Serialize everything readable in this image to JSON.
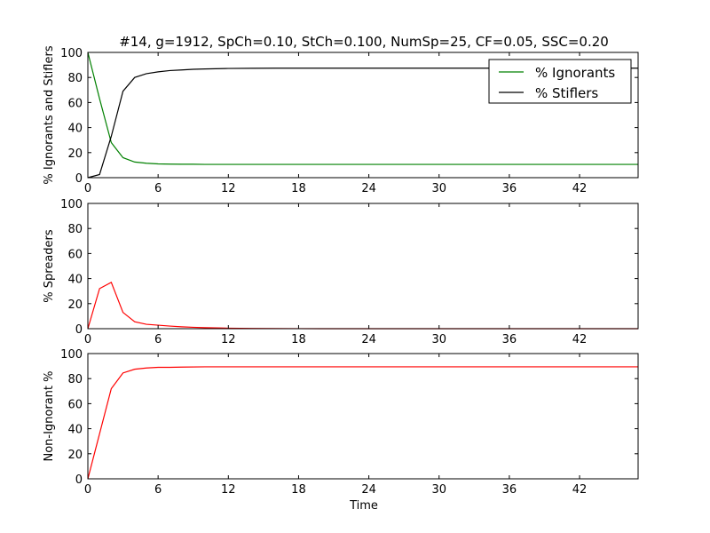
{
  "figure": {
    "title": "#14, g=1912, SpCh=0.10, StCh=0.100, NumSp=25, CF=0.05, SSC=0.20",
    "xlabel": "Time"
  },
  "colors": {
    "green": "#008000",
    "black": "#000000",
    "red": "#ff0000"
  },
  "chart_data": [
    {
      "type": "line",
      "ylabel": "% Ignorants and Stiflers",
      "xlim": [
        0,
        47
      ],
      "ylim": [
        0,
        100
      ],
      "xticks": [
        0,
        6,
        12,
        18,
        24,
        30,
        36,
        42
      ],
      "yticks": [
        0,
        20,
        40,
        60,
        80,
        100
      ],
      "legend": {
        "placement": "top-right"
      },
      "series": [
        {
          "name": "% Ignorants",
          "color": "#008000",
          "x": [
            0,
            1,
            2,
            3,
            4,
            5,
            6,
            7,
            8,
            9,
            10,
            12,
            14,
            16,
            18,
            20,
            24,
            30,
            36,
            42,
            47
          ],
          "y": [
            100,
            63,
            28,
            16,
            12.5,
            11.5,
            11,
            10.8,
            10.7,
            10.7,
            10.6,
            10.6,
            10.6,
            10.6,
            10.6,
            10.6,
            10.6,
            10.6,
            10.6,
            10.6,
            10.6
          ]
        },
        {
          "name": "% Stiflers",
          "color": "#000000",
          "x": [
            0,
            1,
            2,
            3,
            4,
            5,
            6,
            7,
            8,
            9,
            10,
            12,
            14,
            16,
            18,
            20,
            24,
            30,
            36,
            42,
            47
          ],
          "y": [
            0,
            2.5,
            33,
            69,
            80,
            83,
            84.5,
            85.5,
            86,
            86.5,
            86.8,
            87.2,
            87.3,
            87.4,
            87.4,
            87.4,
            87.4,
            87.4,
            87.4,
            87.4,
            87.4
          ]
        }
      ]
    },
    {
      "type": "line",
      "ylabel": "% Spreaders",
      "xlim": [
        0,
        47
      ],
      "ylim": [
        0,
        100
      ],
      "xticks": [
        0,
        6,
        12,
        18,
        24,
        30,
        36,
        42
      ],
      "yticks": [
        0,
        20,
        40,
        60,
        80,
        100
      ],
      "series": [
        {
          "color": "#ff0000",
          "x": [
            0,
            1,
            2,
            3,
            4,
            5,
            6,
            7,
            8,
            9,
            10,
            11,
            12,
            13,
            14,
            16,
            18,
            20,
            24,
            30,
            36,
            42,
            47
          ],
          "y": [
            0,
            32,
            37,
            13,
            5.5,
            3.5,
            2.8,
            2.1,
            1.5,
            1.1,
            0.8,
            0.6,
            0.4,
            0.3,
            0.2,
            0.1,
            0.05,
            0,
            0,
            0,
            0,
            0,
            0
          ]
        }
      ]
    },
    {
      "type": "line",
      "ylabel": "Non-Ignorant %",
      "xlim": [
        0,
        47
      ],
      "ylim": [
        0,
        100
      ],
      "xticks": [
        0,
        6,
        12,
        18,
        24,
        30,
        36,
        42
      ],
      "yticks": [
        0,
        20,
        40,
        60,
        80,
        100
      ],
      "series": [
        {
          "color": "#ff0000",
          "x": [
            0,
            1,
            2,
            3,
            4,
            5,
            6,
            7,
            8,
            10,
            12,
            18,
            24,
            30,
            36,
            42,
            47
          ],
          "y": [
            0,
            36,
            72,
            84.5,
            87.5,
            88.5,
            89,
            89,
            89.2,
            89.4,
            89.4,
            89.4,
            89.4,
            89.4,
            89.4,
            89.4,
            89.4
          ]
        }
      ]
    }
  ]
}
